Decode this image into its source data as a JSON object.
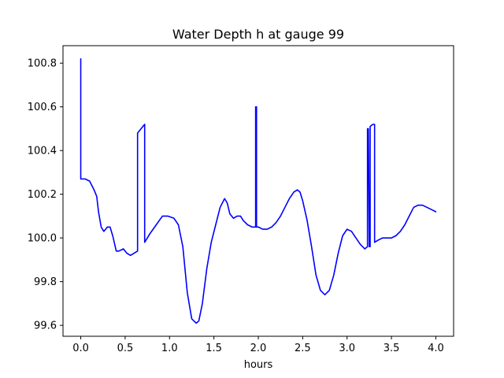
{
  "chart_data": {
    "type": "line",
    "title": "Water Depth h at gauge 99",
    "xlabel": "hours",
    "ylabel": "",
    "xlim": [
      -0.2,
      4.2
    ],
    "ylim": [
      99.55,
      100.88
    ],
    "xticks": [
      0.0,
      0.5,
      1.0,
      1.5,
      2.0,
      2.5,
      3.0,
      3.5,
      4.0
    ],
    "xtick_labels": [
      "0.0",
      "0.5",
      "1.0",
      "1.5",
      "2.0",
      "2.5",
      "3.0",
      "3.5",
      "4.0"
    ],
    "yticks": [
      99.6,
      99.8,
      100.0,
      100.2,
      100.4,
      100.6,
      100.8
    ],
    "ytick_labels": [
      "99.6",
      "99.8",
      "100.0",
      "100.2",
      "100.4",
      "100.6",
      "100.8"
    ],
    "grid": false,
    "series": [
      {
        "color": "#0000ff",
        "x": [
          0.0,
          0.0,
          0.0,
          0.05,
          0.1,
          0.15,
          0.18,
          0.2,
          0.23,
          0.26,
          0.3,
          0.33,
          0.36,
          0.4,
          0.43,
          0.48,
          0.52,
          0.56,
          0.6,
          0.64,
          0.64,
          0.68,
          0.72,
          0.72,
          0.78,
          0.85,
          0.92,
          0.98,
          1.05,
          1.1,
          1.15,
          1.2,
          1.25,
          1.3,
          1.33,
          1.37,
          1.42,
          1.47,
          1.52,
          1.57,
          1.62,
          1.65,
          1.68,
          1.72,
          1.76,
          1.8,
          1.83,
          1.88,
          1.93,
          1.96,
          1.97,
          1.97,
          1.98,
          1.98,
          2.0,
          2.0,
          2.05,
          2.1,
          2.15,
          2.2,
          2.25,
          2.3,
          2.35,
          2.4,
          2.44,
          2.47,
          2.5,
          2.55,
          2.6,
          2.65,
          2.7,
          2.75,
          2.8,
          2.85,
          2.9,
          2.95,
          3.0,
          3.05,
          3.1,
          3.15,
          3.2,
          3.23,
          3.23,
          3.24,
          3.25,
          3.25,
          3.26,
          3.26,
          3.29,
          3.31,
          3.31,
          3.35,
          3.4,
          3.45,
          3.5,
          3.55,
          3.6,
          3.65,
          3.7,
          3.75,
          3.8,
          3.85,
          3.9,
          3.95,
          4.0
        ],
        "y": [
          100.82,
          100.27,
          100.27,
          100.27,
          100.26,
          100.22,
          100.19,
          100.12,
          100.05,
          100.03,
          100.05,
          100.05,
          100.01,
          99.94,
          99.94,
          99.95,
          99.93,
          99.92,
          99.93,
          99.94,
          100.48,
          100.5,
          100.52,
          99.98,
          100.02,
          100.06,
          100.1,
          100.1,
          100.09,
          100.06,
          99.96,
          99.75,
          99.63,
          99.61,
          99.62,
          99.7,
          99.86,
          99.98,
          100.06,
          100.14,
          100.18,
          100.16,
          100.11,
          100.09,
          100.1,
          100.1,
          100.08,
          100.06,
          100.05,
          100.05,
          100.05,
          100.6,
          100.6,
          100.05,
          100.05,
          100.05,
          100.04,
          100.04,
          100.05,
          100.07,
          100.1,
          100.14,
          100.18,
          100.21,
          100.22,
          100.21,
          100.17,
          100.08,
          99.96,
          99.83,
          99.76,
          99.74,
          99.76,
          99.83,
          99.93,
          100.01,
          100.04,
          100.03,
          100.0,
          99.97,
          99.95,
          99.96,
          100.5,
          100.5,
          99.96,
          99.96,
          99.96,
          100.51,
          100.52,
          100.52,
          99.98,
          99.99,
          100.0,
          100.0,
          100.0,
          100.01,
          100.03,
          100.06,
          100.1,
          100.14,
          100.15,
          100.15,
          100.14,
          100.13,
          100.12
        ]
      }
    ]
  }
}
